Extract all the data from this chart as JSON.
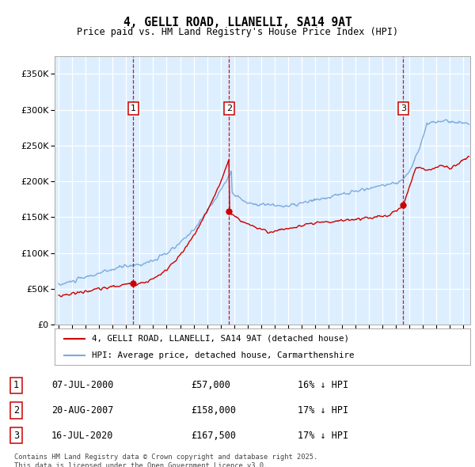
{
  "title": "4, GELLI ROAD, LLANELLI, SA14 9AT",
  "subtitle": "Price paid vs. HM Land Registry's House Price Index (HPI)",
  "legend_line1": "4, GELLI ROAD, LLANELLI, SA14 9AT (detached house)",
  "legend_line2": "HPI: Average price, detached house, Carmarthenshire",
  "footer": "Contains HM Land Registry data © Crown copyright and database right 2025.\nThis data is licensed under the Open Government Licence v3.0.",
  "transactions": [
    {
      "num": 1,
      "date": "07-JUL-2000",
      "price": 57000,
      "hpi_diff": "16% ↓ HPI",
      "year": 2000.52
    },
    {
      "num": 2,
      "date": "20-AUG-2007",
      "price": 158000,
      "hpi_diff": "17% ↓ HPI",
      "year": 2007.63
    },
    {
      "num": 3,
      "date": "16-JUL-2020",
      "price": 167500,
      "hpi_diff": "17% ↓ HPI",
      "year": 2020.54
    }
  ],
  "hpi_color": "#7aaadd",
  "price_color": "#cc0000",
  "vline_color": "#cc0000",
  "background_color": "#ddeeff",
  "ylim": [
    0,
    375000
  ],
  "yticks": [
    0,
    50000,
    100000,
    150000,
    200000,
    250000,
    300000,
    350000
  ],
  "xlim_start": 1994.7,
  "xlim_end": 2025.5,
  "xticks": [
    1995,
    1996,
    1997,
    1998,
    1999,
    2000,
    2001,
    2002,
    2003,
    2004,
    2005,
    2006,
    2007,
    2008,
    2009,
    2010,
    2011,
    2012,
    2013,
    2014,
    2015,
    2016,
    2017,
    2018,
    2019,
    2020,
    2021,
    2022,
    2023,
    2024,
    2025
  ],
  "noise_seed_hpi": 10,
  "noise_seed_price": 20,
  "noise_scale_hpi": 2000,
  "noise_scale_price": 1500
}
